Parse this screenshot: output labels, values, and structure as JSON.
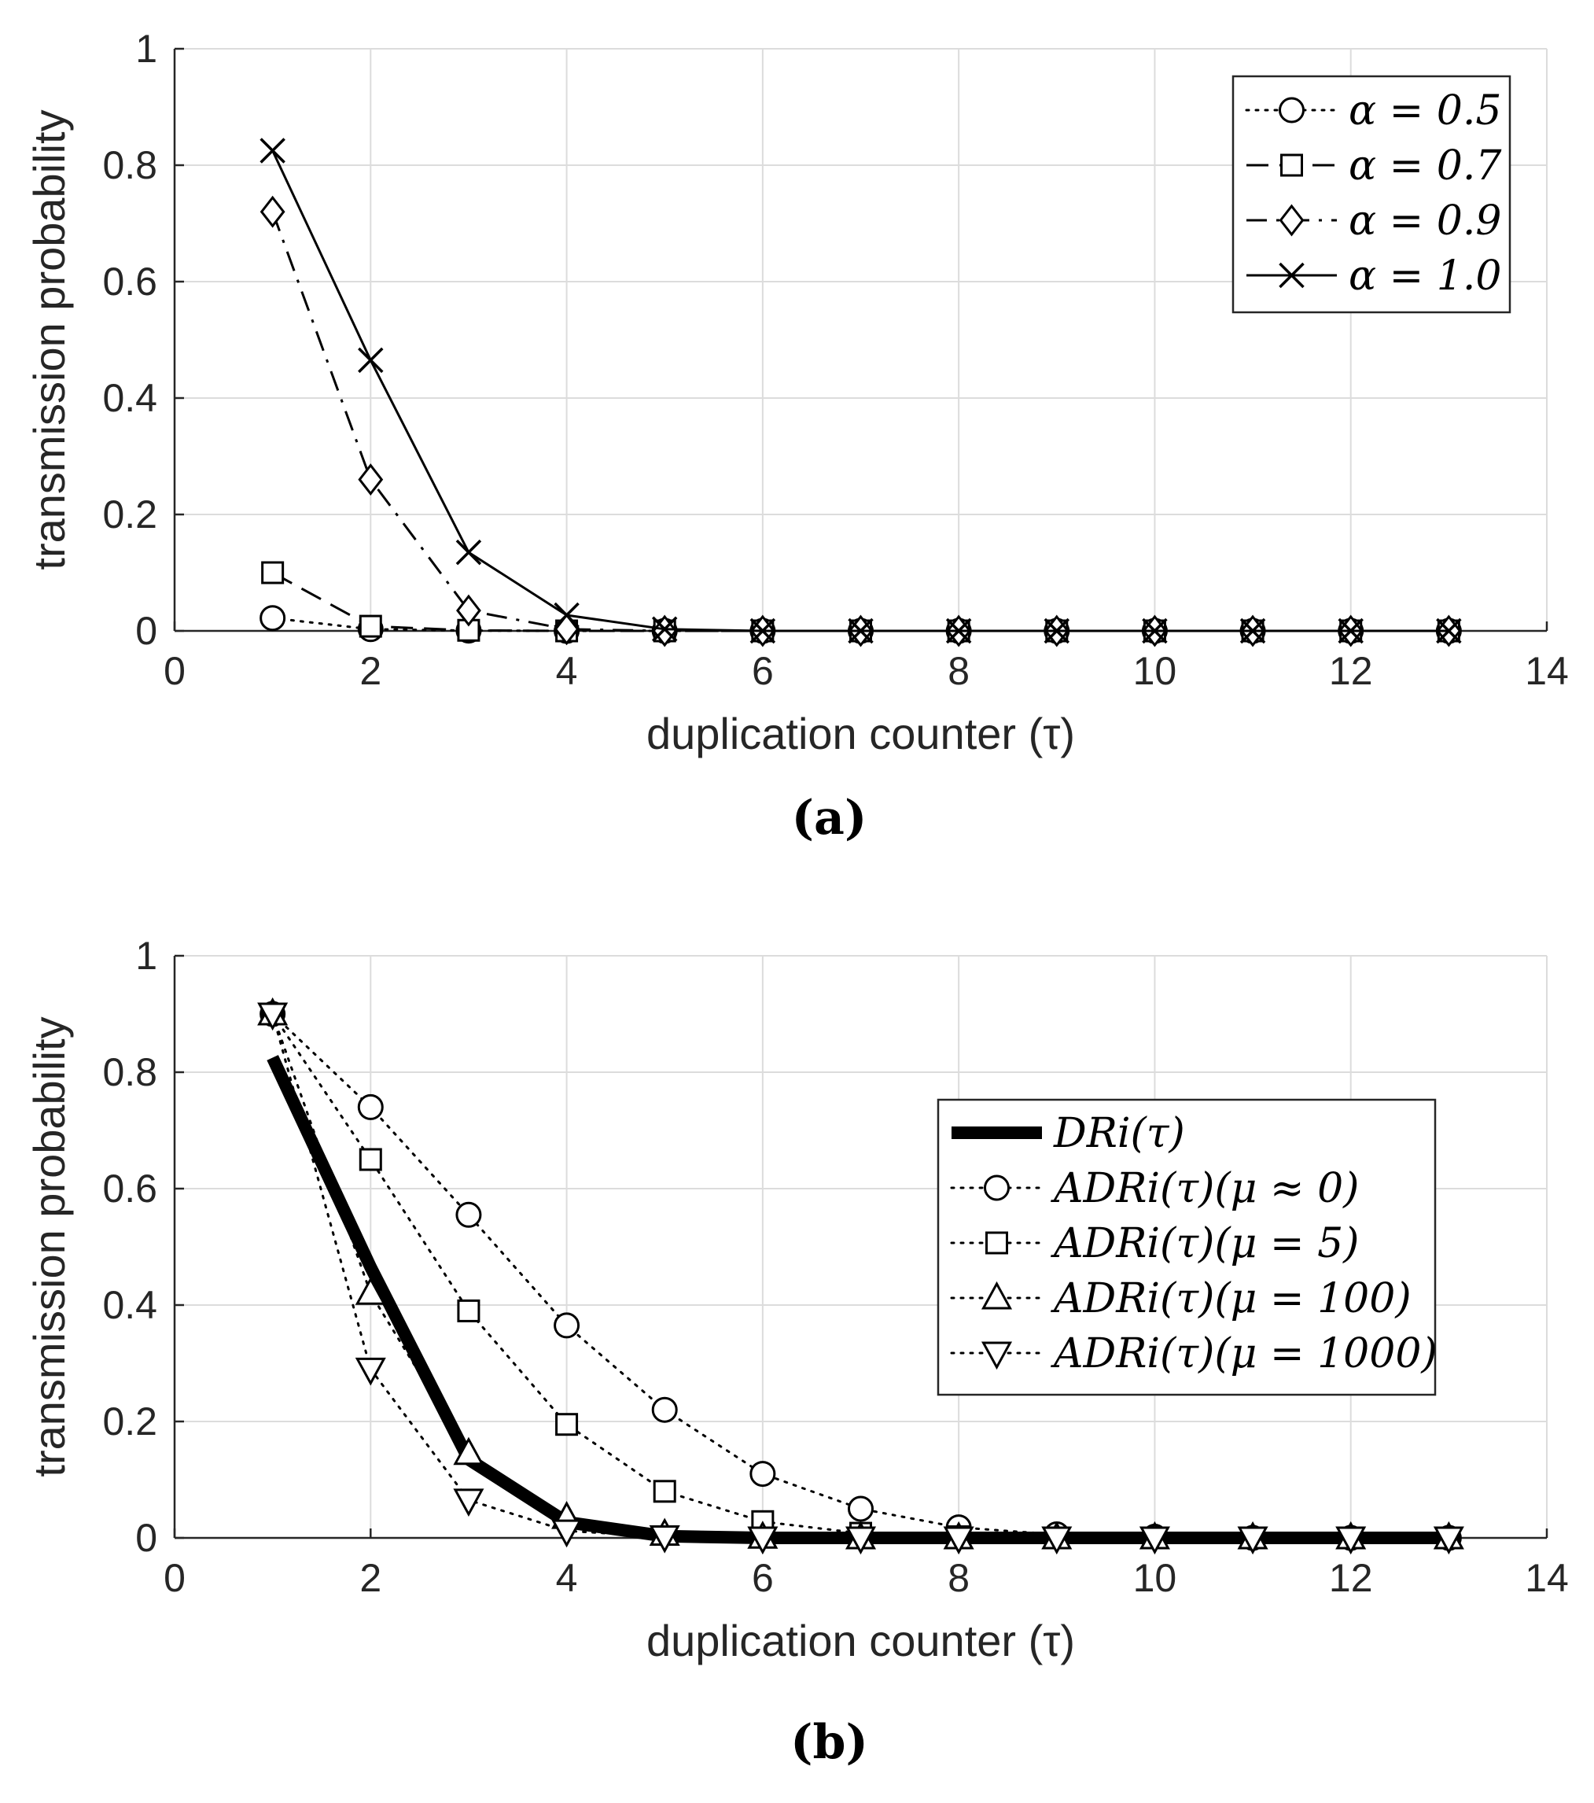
{
  "chart_data": [
    {
      "id": "a",
      "type": "line",
      "caption": "(a)",
      "xlabel": "duplication counter (τ)",
      "ylabel": "transmission probability",
      "xlim": [
        0,
        14
      ],
      "ylim": [
        0,
        1
      ],
      "xticks": [
        "0",
        "2",
        "4",
        "6",
        "8",
        "10",
        "12",
        "14"
      ],
      "yticks": [
        "0",
        "0.2",
        "0.4",
        "0.6",
        "0.8",
        "1"
      ],
      "grid": true,
      "legend_position": "top-right",
      "x": [
        1,
        2,
        3,
        4,
        5,
        6,
        7,
        8,
        9,
        10,
        11,
        12,
        13
      ],
      "series": [
        {
          "name": "α = 0.5",
          "line": "dotted",
          "marker": "circle",
          "color": "#000000",
          "values": [
            0.022,
            0.003,
            0.0005,
            0,
            0,
            0,
            0,
            0,
            0,
            0,
            0,
            0,
            0
          ]
        },
        {
          "name": "α = 0.7",
          "line": "dashed",
          "marker": "square",
          "color": "#000000",
          "values": [
            0.1,
            0.008,
            0.001,
            0,
            0,
            0,
            0,
            0,
            0,
            0,
            0,
            0,
            0
          ]
        },
        {
          "name": "α = 0.9",
          "line": "dashdot",
          "marker": "diamond",
          "color": "#000000",
          "values": [
            0.72,
            0.26,
            0.035,
            0.003,
            0,
            0,
            0,
            0,
            0,
            0,
            0,
            0,
            0
          ]
        },
        {
          "name": "α = 1.0",
          "line": "solid",
          "marker": "x",
          "color": "#000000",
          "values": [
            0.825,
            0.465,
            0.135,
            0.027,
            0.003,
            0,
            0,
            0,
            0,
            0,
            0,
            0,
            0
          ]
        }
      ]
    },
    {
      "id": "b",
      "type": "line",
      "caption": "(b)",
      "xlabel": "duplication counter (τ)",
      "ylabel": "transmission probability",
      "xlim": [
        0,
        14
      ],
      "ylim": [
        0,
        1
      ],
      "xticks": [
        "0",
        "2",
        "4",
        "6",
        "8",
        "10",
        "12",
        "14"
      ],
      "yticks": [
        "0",
        "0.2",
        "0.4",
        "0.6",
        "0.8",
        "1"
      ],
      "grid": true,
      "legend_position": "right",
      "x": [
        1,
        2,
        3,
        4,
        5,
        6,
        7,
        8,
        9,
        10,
        11,
        12,
        13
      ],
      "series": [
        {
          "name": "DRi(τ)",
          "line": "thick",
          "marker": "none",
          "color": "#000000",
          "values": [
            0.825,
            0.465,
            0.135,
            0.027,
            0.003,
            0,
            0,
            0,
            0,
            0,
            0,
            0,
            0
          ]
        },
        {
          "name": "ADRi(τ)(μ ≈ 0)",
          "line": "dotted",
          "marker": "circle",
          "color": "#000000",
          "values": [
            0.9,
            0.74,
            0.555,
            0.365,
            0.22,
            0.11,
            0.05,
            0.018,
            0.006,
            0.002,
            0,
            0,
            0
          ]
        },
        {
          "name": "ADRi(τ)(μ = 5)",
          "line": "dotted",
          "marker": "square",
          "color": "#000000",
          "values": [
            0.9,
            0.65,
            0.39,
            0.195,
            0.08,
            0.028,
            0.008,
            0.002,
            0,
            0,
            0,
            0,
            0
          ]
        },
        {
          "name": "ADRi(τ)(μ = 100)",
          "line": "dotted",
          "marker": "triangle-up",
          "color": "#000000",
          "values": [
            0.9,
            0.42,
            0.145,
            0.035,
            0.006,
            0.001,
            0,
            0,
            0,
            0,
            0,
            0,
            0
          ]
        },
        {
          "name": "ADRi(τ)(μ = 1000)",
          "line": "dotted",
          "marker": "triangle-down",
          "color": "#000000",
          "values": [
            0.9,
            0.29,
            0.065,
            0.012,
            0.002,
            0,
            0,
            0,
            0,
            0,
            0,
            0,
            0
          ]
        }
      ]
    }
  ]
}
